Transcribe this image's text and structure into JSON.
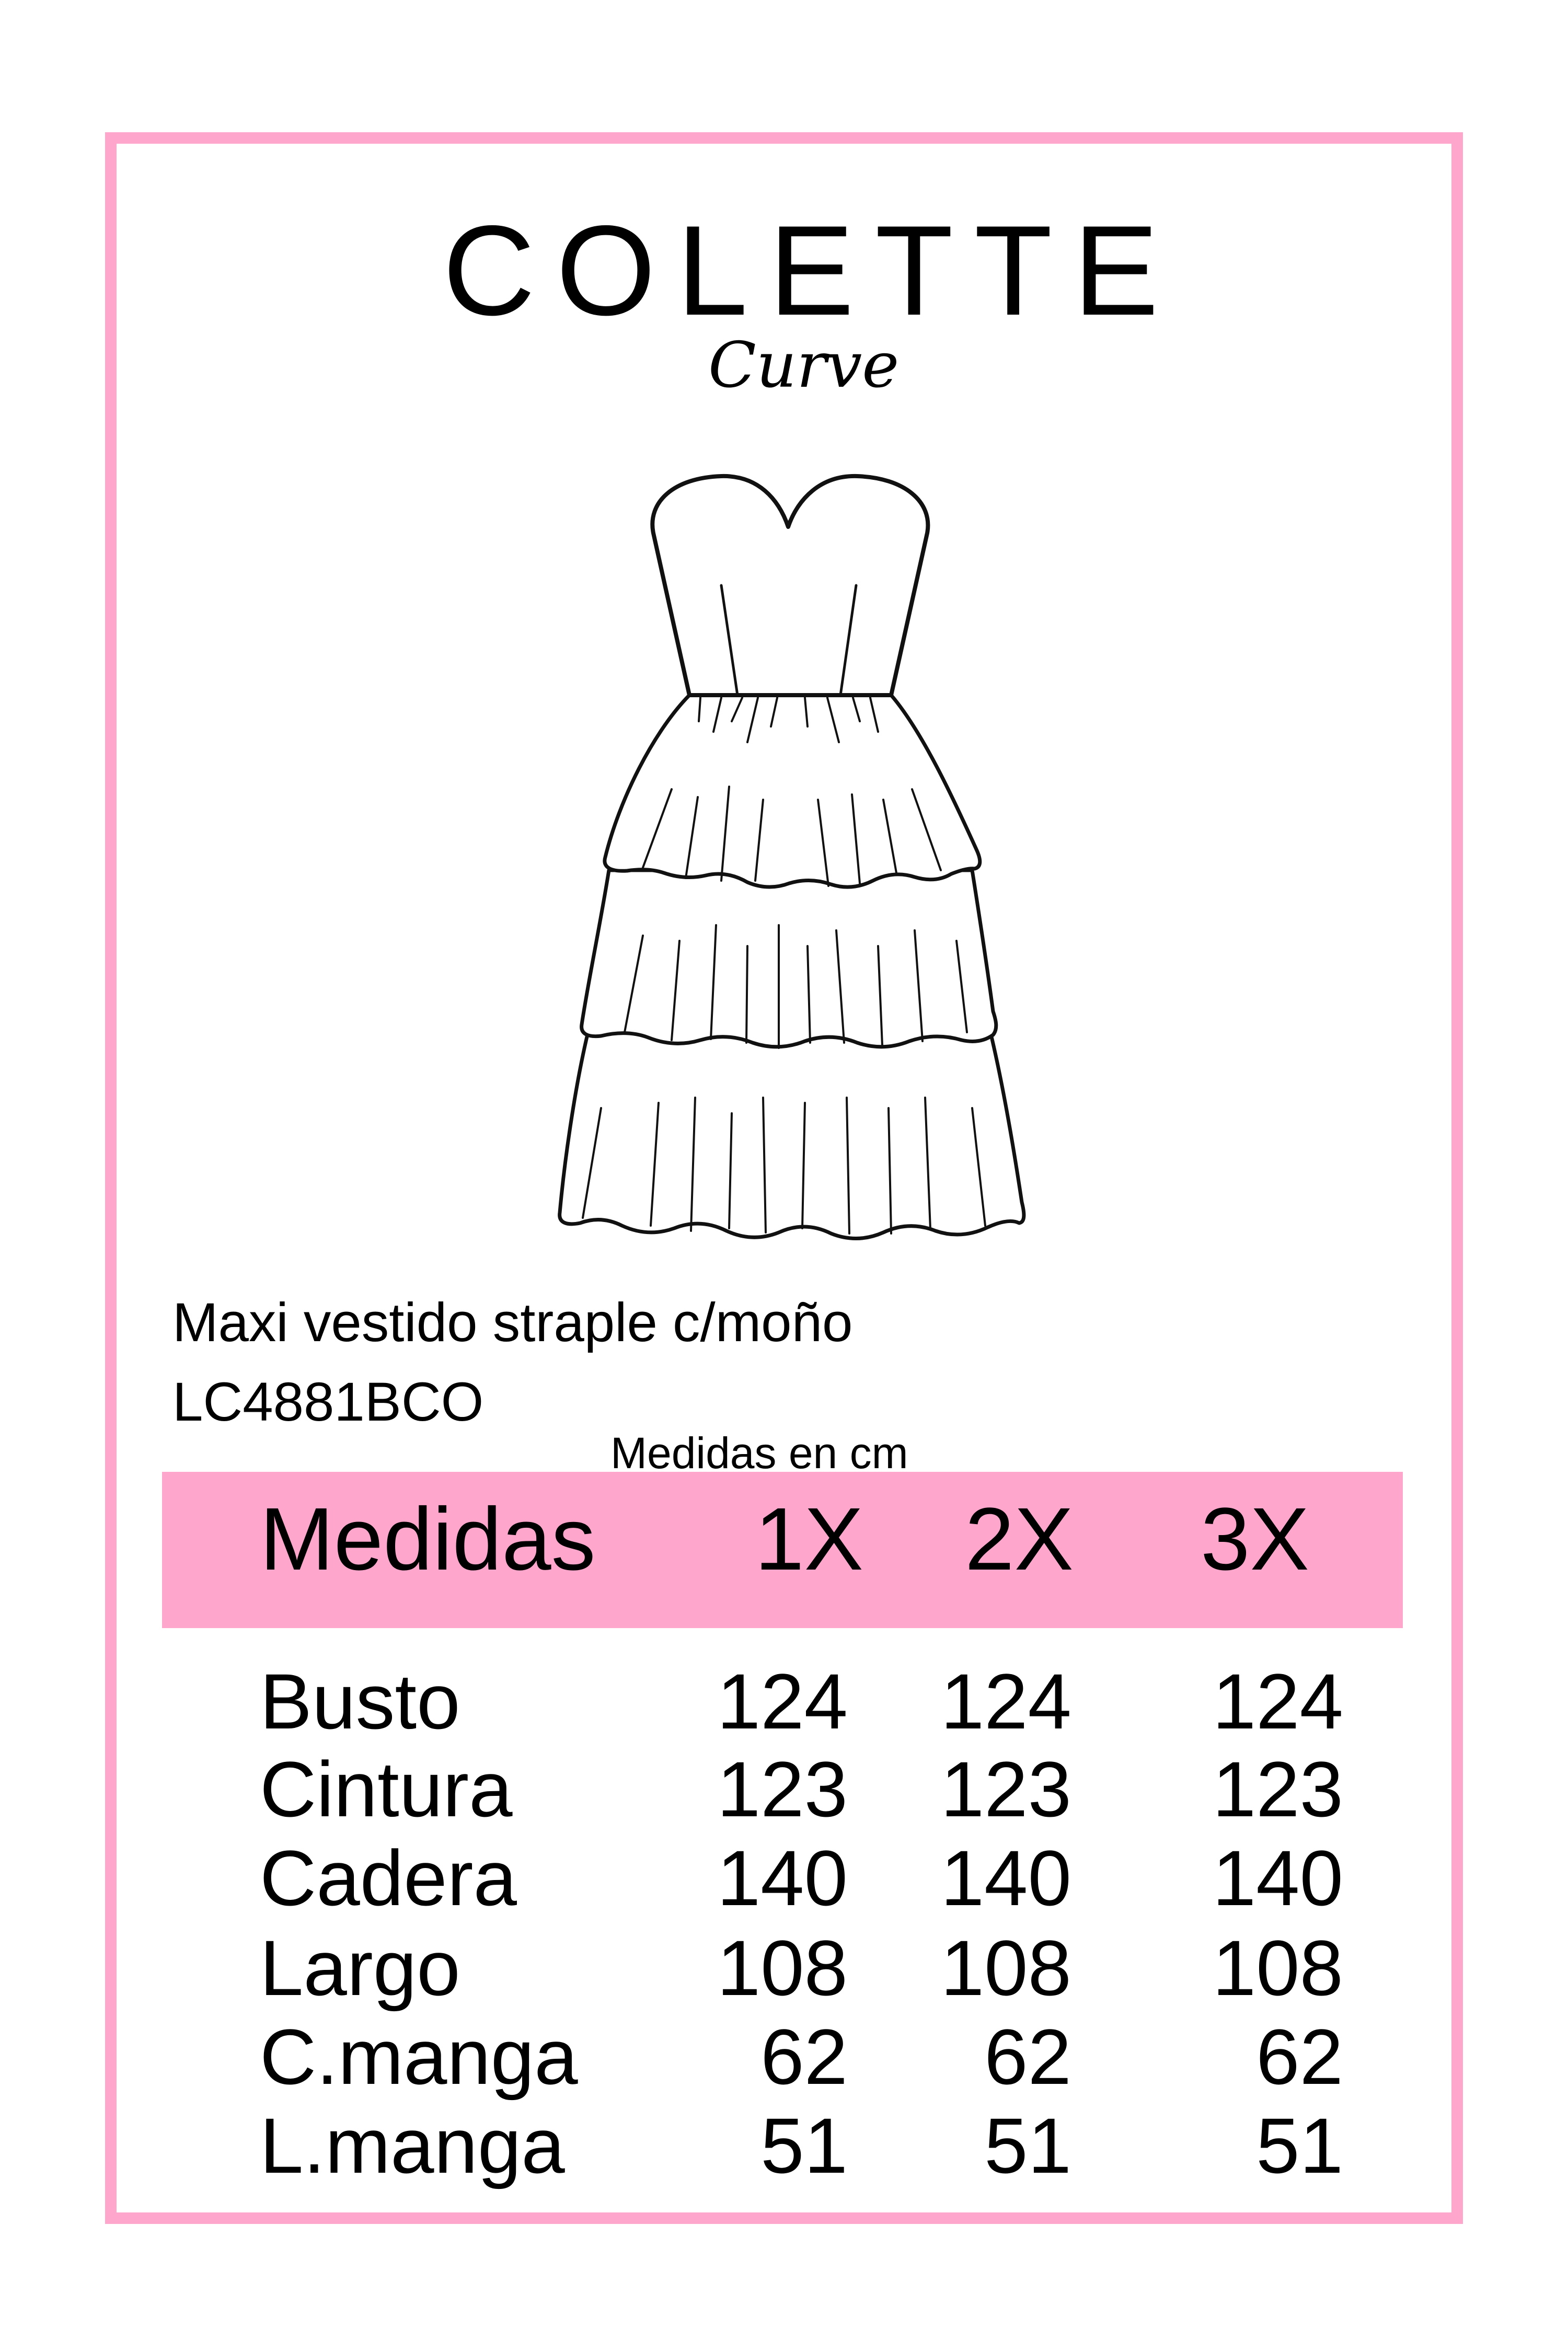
{
  "brand": {
    "name": "COLETTE",
    "subline": "Curve"
  },
  "product": {
    "name": "Maxi vestido straple c/moño",
    "code": "LC4881BCO"
  },
  "table": {
    "caption": "Medidas en cm",
    "header": [
      "Medidas",
      "1X",
      "2X",
      "3X"
    ],
    "rows": [
      {
        "label": "Busto",
        "values": [
          "124",
          "124",
          "124"
        ]
      },
      {
        "label": "Cintura",
        "values": [
          "123",
          "123",
          "123"
        ]
      },
      {
        "label": "Cadera",
        "values": [
          "140",
          "140",
          "140"
        ]
      },
      {
        "label": "Largo",
        "values": [
          "108",
          "108",
          "108"
        ]
      },
      {
        "label": "C.manga",
        "values": [
          "62",
          "62",
          "62"
        ]
      },
      {
        "label": "L.manga",
        "values": [
          "51",
          "51",
          "51"
        ]
      }
    ]
  },
  "colors": {
    "accent_pink": "#ffa6cc",
    "text": "#000000",
    "background": "#ffffff"
  },
  "illustration": "tiered-strapless-dress-sketch"
}
